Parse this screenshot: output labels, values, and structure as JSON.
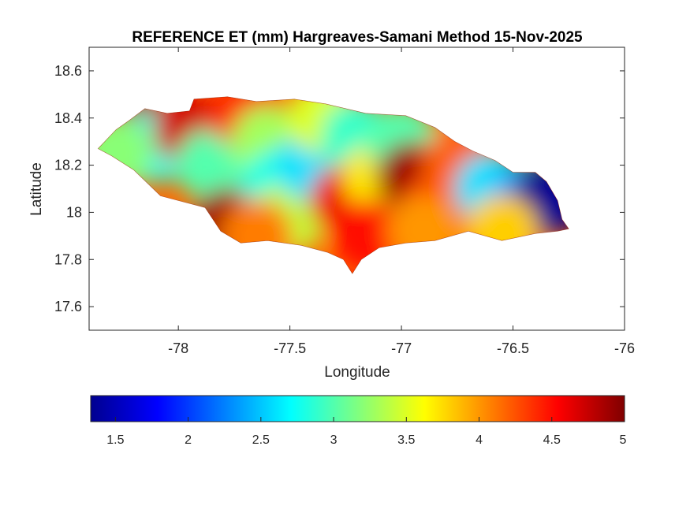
{
  "title": "REFERENCE ET (mm) Hargreaves-Samani Method  15-Nov-2025",
  "xlabel": "Longitude",
  "ylabel": "Latitude",
  "map": {
    "xlim": [
      -78.4,
      -76.0
    ],
    "ylim": [
      17.5,
      18.7
    ],
    "x_ticks": [
      -78,
      -77.5,
      -77,
      -76.5,
      -76
    ],
    "y_ticks": [
      17.6,
      17.8,
      18,
      18.2,
      18.4,
      18.6
    ],
    "outline_lonlat": [
      [
        -78.36,
        18.27
      ],
      [
        -78.32,
        18.31
      ],
      [
        -78.28,
        18.35
      ],
      [
        -78.22,
        18.39
      ],
      [
        -78.15,
        18.44
      ],
      [
        -78.05,
        18.42
      ],
      [
        -77.95,
        18.43
      ],
      [
        -77.93,
        18.48
      ],
      [
        -77.78,
        18.49
      ],
      [
        -77.65,
        18.47
      ],
      [
        -77.48,
        18.48
      ],
      [
        -77.34,
        18.46
      ],
      [
        -77.16,
        18.42
      ],
      [
        -76.98,
        18.41
      ],
      [
        -76.85,
        18.36
      ],
      [
        -76.76,
        18.3
      ],
      [
        -76.68,
        18.26
      ],
      [
        -76.58,
        18.22
      ],
      [
        -76.5,
        18.17
      ],
      [
        -76.4,
        18.17
      ],
      [
        -76.35,
        18.13
      ],
      [
        -76.3,
        18.05
      ],
      [
        -76.28,
        17.97
      ],
      [
        -76.25,
        17.93
      ],
      [
        -76.3,
        17.92
      ],
      [
        -76.4,
        17.91
      ],
      [
        -76.55,
        17.88
      ],
      [
        -76.7,
        17.92
      ],
      [
        -76.85,
        17.88
      ],
      [
        -76.98,
        17.87
      ],
      [
        -77.1,
        17.85
      ],
      [
        -77.18,
        17.8
      ],
      [
        -77.22,
        17.74
      ],
      [
        -77.26,
        17.8
      ],
      [
        -77.33,
        17.83
      ],
      [
        -77.45,
        17.86
      ],
      [
        -77.6,
        17.88
      ],
      [
        -77.72,
        17.87
      ],
      [
        -77.81,
        17.92
      ],
      [
        -77.88,
        18.02
      ],
      [
        -78.0,
        18.05
      ],
      [
        -78.08,
        18.07
      ],
      [
        -78.2,
        18.18
      ],
      [
        -78.3,
        18.24
      ],
      [
        -78.36,
        18.27
      ]
    ],
    "field_points": [
      [
        -78.2,
        18.38,
        4.8
      ],
      [
        -78.1,
        18.28,
        2.8
      ],
      [
        -78.28,
        18.25,
        3.2
      ],
      [
        -77.95,
        18.35,
        4.7
      ],
      [
        -77.85,
        18.2,
        3.0
      ],
      [
        -77.78,
        17.95,
        4.9
      ],
      [
        -77.7,
        18.42,
        4.4
      ],
      [
        -77.6,
        18.3,
        3.3
      ],
      [
        -77.55,
        18.12,
        2.8
      ],
      [
        -77.5,
        17.98,
        3.4
      ],
      [
        -77.4,
        18.2,
        2.6
      ],
      [
        -77.35,
        18.4,
        3.5
      ],
      [
        -77.2,
        18.32,
        2.9
      ],
      [
        -77.25,
        18.05,
        4.6
      ],
      [
        -77.1,
        18.15,
        3.7
      ],
      [
        -77.0,
        18.3,
        3.0
      ],
      [
        -76.95,
        18.15,
        4.9
      ],
      [
        -76.85,
        18.0,
        4.3
      ],
      [
        -76.75,
        18.2,
        4.2
      ],
      [
        -76.6,
        18.1,
        2.6
      ],
      [
        -76.45,
        18.05,
        2.4
      ],
      [
        -76.35,
        18.05,
        1.4
      ],
      [
        -76.55,
        17.92,
        3.8
      ],
      [
        -77.15,
        17.9,
        4.5
      ],
      [
        -77.65,
        17.9,
        4.1
      ],
      [
        -76.9,
        17.92,
        4.0
      ]
    ]
  },
  "colorbar": {
    "range": [
      1.33,
      5.0
    ],
    "ticks": [
      "1.5",
      "2",
      "2.5",
      "3",
      "3.5",
      "4",
      "4.5",
      "5"
    ],
    "tick_values": [
      1.5,
      2,
      2.5,
      3,
      3.5,
      4,
      4.5,
      5
    ]
  },
  "colormap": "jet"
}
